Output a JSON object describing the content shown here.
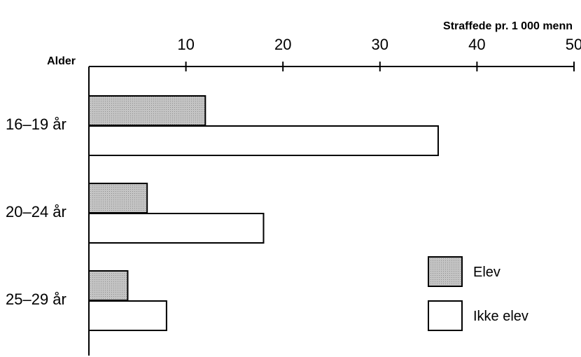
{
  "chart_data": {
    "type": "bar",
    "orientation": "horizontal",
    "unit_label": "Straffede pr. 1 000 menn",
    "category_axis_title": "Alder",
    "categories": [
      "16–19 år",
      "20–24 år",
      "25–29 år"
    ],
    "series": [
      {
        "name": "Elev",
        "values": [
          12,
          6,
          4
        ],
        "color": "#bdbdbd"
      },
      {
        "name": "Ikke elev",
        "values": [
          36,
          18,
          8
        ],
        "color": "#ffffff"
      }
    ],
    "xlim": [
      0,
      50
    ],
    "x_ticks": [
      "10",
      "20",
      "30",
      "40",
      "50"
    ],
    "x_axis_position": "top",
    "grid": false,
    "legend_position": "bottom-right"
  }
}
